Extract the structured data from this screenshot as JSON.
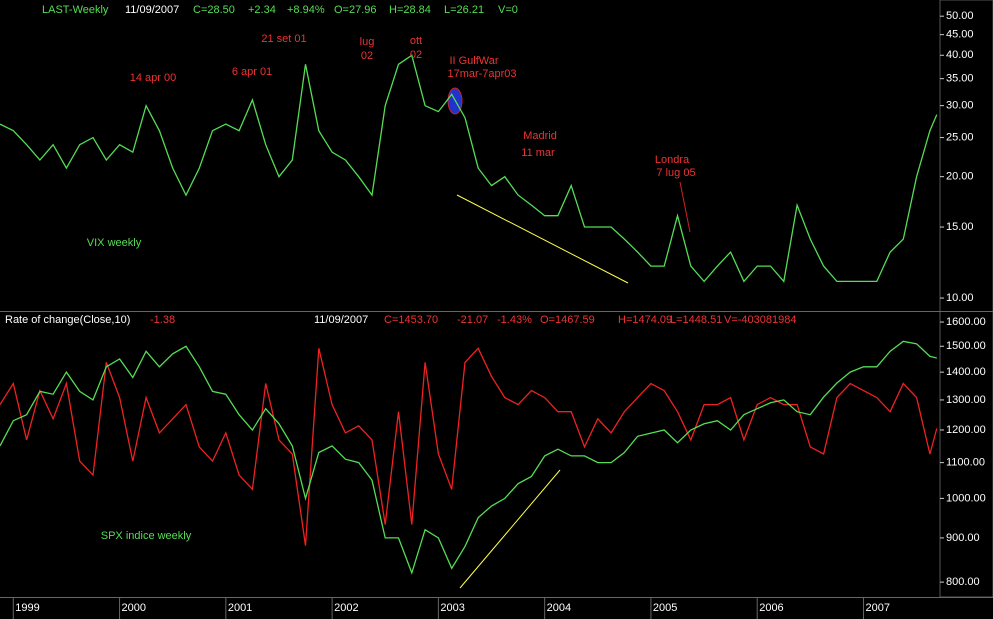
{
  "chart_data": [
    {
      "type": "line",
      "header": [
        "LAST-Weekly",
        "11/09/2007",
        "C=28.50",
        "+2.34",
        "+8.94%",
        "O=27.96",
        "H=28.84",
        "L=26.21",
        "V=0"
      ],
      "annotations": [
        "14 apr 00",
        "6 apr 01",
        "21 set 01",
        "lug",
        "02",
        "ott",
        "02",
        "II GulfWar",
        "17mar-7apr03",
        "Madrid",
        "11 mar",
        "Londra",
        "7 lug 05",
        "VIX weekly"
      ],
      "log_scale": true,
      "xlim": [
        1998.875,
        2007.72
      ],
      "ylim": [
        9.34,
        53.3
      ],
      "yticks": [
        {
          "value": 10,
          "label": "10.00"
        },
        {
          "value": 15,
          "label": "15.00"
        },
        {
          "value": 20,
          "label": "20.00"
        },
        {
          "value": 25,
          "label": "25.00"
        },
        {
          "value": 30,
          "label": "30.00"
        },
        {
          "value": 35,
          "label": "35.00"
        },
        {
          "value": 40,
          "label": "40.00"
        },
        {
          "value": 45,
          "label": "45.00"
        },
        {
          "value": 50,
          "label": "50.00"
        }
      ],
      "x": [
        1998.875,
        1999,
        1999.125,
        1999.25,
        1999.375,
        1999.5,
        1999.625,
        1999.75,
        1999.875,
        2000,
        2000.125,
        2000.25,
        2000.375,
        2000.5,
        2000.625,
        2000.75,
        2000.875,
        2001,
        2001.125,
        2001.25,
        2001.375,
        2001.5,
        2001.625,
        2001.75,
        2001.875,
        2002,
        2002.125,
        2002.25,
        2002.375,
        2002.5,
        2002.625,
        2002.75,
        2002.875,
        2003,
        2003.125,
        2003.25,
        2003.375,
        2003.5,
        2003.625,
        2003.75,
        2003.875,
        2004,
        2004.125,
        2004.25,
        2004.375,
        2004.5,
        2004.625,
        2004.75,
        2004.875,
        2005,
        2005.125,
        2005.25,
        2005.375,
        2005.5,
        2005.625,
        2005.75,
        2005.875,
        2006,
        2006.125,
        2006.25,
        2006.375,
        2006.5,
        2006.625,
        2006.75,
        2006.875,
        2007,
        2007.125,
        2007.25,
        2007.375,
        2007.5,
        2007.625,
        2007.69
      ],
      "series": [
        {
          "color": "#55dd55",
          "values": [
            27,
            26,
            24,
            22,
            24,
            21,
            24,
            25,
            22,
            24,
            23,
            30,
            26,
            21,
            18,
            21,
            26,
            27,
            26,
            31,
            24,
            20,
            22,
            38,
            26,
            23,
            22,
            20,
            18,
            30,
            38,
            40,
            30,
            29,
            32,
            28,
            21,
            19,
            20,
            18,
            17,
            16,
            16,
            19,
            15,
            15,
            15,
            14,
            13,
            12,
            12,
            16,
            12,
            11,
            12,
            13,
            11,
            12,
            12,
            11,
            17,
            14,
            12,
            11,
            11,
            11,
            11,
            13,
            14,
            20,
            26,
            28.5
          ]
        }
      ]
    },
    {
      "type": "line",
      "header": [
        "Rate of change(Close,10)",
        "-1.38",
        "11/09/2007",
        "C=1453.70",
        "-21.07",
        "-1.43%",
        "O=1467.59",
        "H=1474.09",
        "L=1448.51",
        "V=-403081984"
      ],
      "annotations": [
        "SPX indice weekly"
      ],
      "log_scale": true,
      "xlim": [
        1998.875,
        2007.72
      ],
      "xticks": [
        1999,
        2000,
        2001,
        2002,
        2003,
        2004,
        2005,
        2006,
        2007
      ],
      "ylim": [
        773,
        1639
      ],
      "yticks": [
        {
          "value": 800,
          "label": "800.00"
        },
        {
          "value": 900,
          "label": "900.00"
        },
        {
          "value": 1000,
          "label": "1000.00"
        },
        {
          "value": 1100,
          "label": "1100.00"
        },
        {
          "value": 1200,
          "label": "1200.00"
        },
        {
          "value": 1300,
          "label": "1300.00"
        },
        {
          "value": 1400,
          "label": "1400.00"
        },
        {
          "value": 1500,
          "label": "1500.00"
        },
        {
          "value": 1600,
          "label": "1600.00"
        }
      ],
      "y2lim": [
        -25,
        15
      ],
      "x": [
        1998.875,
        1999,
        1999.125,
        1999.25,
        1999.375,
        1999.5,
        1999.625,
        1999.75,
        1999.875,
        2000,
        2000.125,
        2000.25,
        2000.375,
        2000.5,
        2000.625,
        2000.75,
        2000.875,
        2001,
        2001.125,
        2001.25,
        2001.375,
        2001.5,
        2001.625,
        2001.75,
        2001.875,
        2002,
        2002.125,
        2002.25,
        2002.375,
        2002.5,
        2002.625,
        2002.75,
        2002.875,
        2003,
        2003.125,
        2003.25,
        2003.375,
        2003.5,
        2003.625,
        2003.75,
        2003.875,
        2004,
        2004.125,
        2004.25,
        2004.375,
        2004.5,
        2004.625,
        2004.75,
        2004.875,
        2005,
        2005.125,
        2005.25,
        2005.375,
        2005.5,
        2005.625,
        2005.75,
        2005.875,
        2006,
        2006.125,
        2006.25,
        2006.375,
        2006.5,
        2006.625,
        2006.75,
        2006.875,
        2007,
        2007.125,
        2007.25,
        2007.375,
        2007.5,
        2007.625,
        2007.69
      ],
      "series": [
        {
          "color": "#ee2222",
          "axis": "y2",
          "values": [
            2,
            5,
            -3,
            4,
            0,
            5,
            -6,
            -8,
            8,
            3,
            -6,
            3,
            -2,
            0,
            2,
            -4,
            -6,
            -2,
            -8,
            -10,
            5,
            -3,
            -5,
            -18,
            10,
            2,
            -2,
            -1,
            -3,
            -15,
            1,
            -15,
            8,
            -5,
            -10,
            8,
            10,
            6,
            3,
            2,
            4,
            3,
            1,
            1,
            -4,
            0,
            -2,
            1,
            3,
            5,
            4,
            1,
            -3,
            2,
            2,
            3,
            -3,
            2,
            3,
            2,
            2,
            -4,
            -5,
            3,
            5,
            4,
            3,
            1,
            5,
            3,
            -5,
            -1.38
          ]
        },
        {
          "color": "#55dd55",
          "values": [
            1150,
            1230,
            1250,
            1330,
            1320,
            1400,
            1330,
            1300,
            1420,
            1450,
            1380,
            1480,
            1420,
            1470,
            1500,
            1420,
            1330,
            1320,
            1250,
            1200,
            1270,
            1220,
            1150,
            1000,
            1130,
            1150,
            1110,
            1100,
            1050,
            900,
            900,
            820,
            920,
            900,
            830,
            880,
            950,
            980,
            1000,
            1040,
            1060,
            1120,
            1140,
            1120,
            1120,
            1100,
            1100,
            1130,
            1180,
            1190,
            1200,
            1160,
            1200,
            1220,
            1230,
            1200,
            1250,
            1270,
            1290,
            1300,
            1260,
            1250,
            1310,
            1360,
            1400,
            1420,
            1420,
            1480,
            1520,
            1510,
            1460,
            1453.7
          ]
        }
      ]
    }
  ]
}
